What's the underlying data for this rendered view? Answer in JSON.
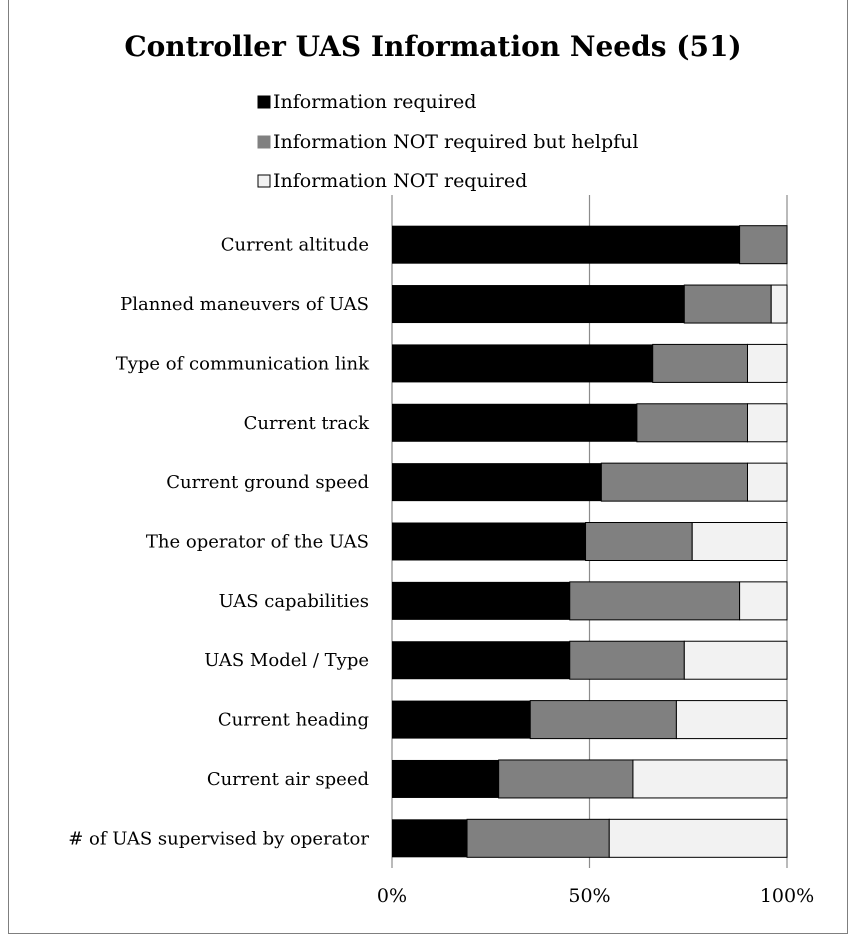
{
  "chart_data": {
    "type": "bar",
    "orientation": "horizontal",
    "stacked": "percent",
    "title": "Controller UAS Information Needs (51)",
    "categories": [
      "Current altitude",
      "Planned maneuvers of UAS",
      "Type of communication link",
      "Current track",
      "Current ground speed",
      "The operator of the UAS",
      "UAS capabilities",
      "UAS Model / Type",
      "Current heading",
      "Current air speed",
      "# of UAS supervised by operator"
    ],
    "series": [
      {
        "name": "Information required",
        "color": "#000000",
        "values": [
          88,
          74,
          66,
          62,
          53,
          49,
          45,
          45,
          35,
          27,
          19
        ]
      },
      {
        "name": "Information NOT required but helpful",
        "color": "#808080",
        "values": [
          12,
          22,
          24,
          28,
          37,
          27,
          43,
          29,
          37,
          34,
          36
        ]
      },
      {
        "name": "Information NOT required",
        "color": "#f2f2f2",
        "values": [
          0,
          4,
          10,
          10,
          10,
          24,
          12,
          26,
          28,
          39,
          45
        ]
      }
    ],
    "xlim": [
      0,
      100
    ],
    "xticks": [
      "0%",
      "50%",
      "100%"
    ],
    "grid": true,
    "legend_position": "top"
  }
}
